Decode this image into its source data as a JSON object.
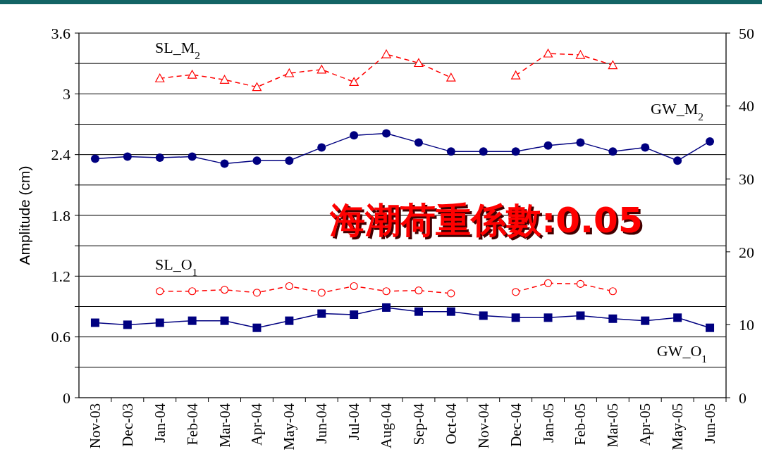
{
  "chart_data": {
    "type": "line",
    "ylabel": "Amplitude (cm)",
    "annotations": [
      "海潮荷重係數:0.05"
    ],
    "categories": [
      "Nov-03",
      "Dec-03",
      "Jan-04",
      "Feb-04",
      "Mar-04",
      "Apr-04",
      "May-04",
      "Jun-04",
      "Jul-04",
      "Aug-04",
      "Sep-04",
      "Oct-04",
      "Nov-04",
      "Dec-04",
      "Jan-05",
      "Feb-05",
      "Mar-05",
      "Apr-05",
      "May-05",
      "Jun-05"
    ],
    "series": [
      {
        "name": "SL_M$_{2}$",
        "color": "#ff0000",
        "axis": "y2",
        "marker": "triangle",
        "line_style": "dashed",
        "values": [
          null,
          null,
          43.8,
          44.3,
          43.6,
          42.6,
          44.5,
          45.0,
          43.3,
          47.1,
          45.9,
          43.9,
          null,
          44.2,
          47.2,
          47.0,
          45.6,
          null,
          null,
          null
        ]
      },
      {
        "name": "GW_M$_{2}$",
        "color": "#000080",
        "marker": "circle",
        "line_style": "solid",
        "values": [
          2.36,
          2.38,
          2.37,
          2.38,
          2.31,
          2.34,
          2.34,
          2.47,
          2.59,
          2.61,
          2.52,
          2.43,
          2.43,
          2.43,
          2.49,
          2.52,
          2.43,
          2.47,
          2.34,
          2.53
        ]
      },
      {
        "name": "SL_O$_{1}$",
        "color": "#ff0000",
        "axis": "y2",
        "marker": "circle-open",
        "line_style": "dashed",
        "values": [
          null,
          null,
          14.6,
          14.6,
          14.8,
          14.4,
          15.3,
          14.4,
          15.3,
          14.6,
          14.7,
          14.3,
          null,
          14.5,
          15.7,
          15.6,
          14.6,
          null,
          null,
          null
        ]
      },
      {
        "name": "GW_O$_{1}$",
        "color": "#000080",
        "marker": "square",
        "line_style": "solid",
        "values": [
          0.74,
          0.72,
          0.74,
          0.76,
          0.76,
          0.69,
          0.76,
          0.83,
          0.82,
          0.89,
          0.85,
          0.85,
          0.81,
          0.79,
          0.79,
          0.81,
          0.78,
          0.76,
          0.79,
          0.69
        ]
      }
    ],
    "ylim": [
      0,
      3.6
    ],
    "yticks": [
      0,
      {
        "value": 0.3,
        "label": null
      },
      0.6,
      {
        "value": 0.9,
        "label": null
      },
      1.2,
      {
        "value": 1.5,
        "label": null
      },
      1.8,
      {
        "value": 2.1,
        "label": null
      },
      2.4,
      {
        "value": 2.7,
        "label": null
      },
      3,
      {
        "value": 3.3,
        "label": null
      },
      3.6
    ],
    "y2lim": [
      0,
      50
    ],
    "y2ticks": [
      0,
      10,
      20,
      30,
      40,
      50
    ],
    "grid": "y"
  }
}
